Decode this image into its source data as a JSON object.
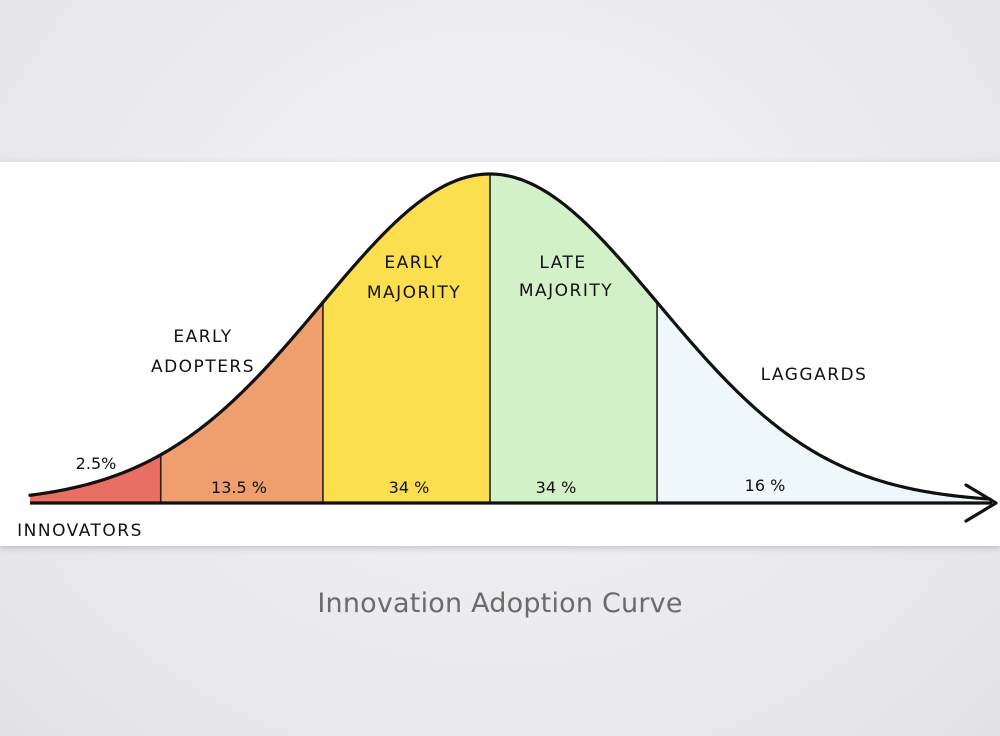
{
  "slide": {
    "caption": "Innovation Adoption Curve"
  },
  "chart_data": {
    "type": "area",
    "series": [
      {
        "name": "INNOVATORS",
        "value_label": "2.5%",
        "value": 2.5,
        "color": "#ea6f63"
      },
      {
        "name": "EARLY ADOPTERS",
        "value_label": "13.5 %",
        "value": 13.5,
        "color": "#ef9e6e"
      },
      {
        "name": "EARLY MAJORITY",
        "value_label": "34 %",
        "value": 34,
        "color": "#fbdf4e"
      },
      {
        "name": "LATE MAJORITY",
        "value_label": "34 %",
        "value": 34,
        "color": "#d3f1c9"
      },
      {
        "name": "LAGGARDS",
        "value_label": "16 %",
        "value": 16,
        "color": "#eef7fa"
      }
    ],
    "labels": {
      "innovators": "INNOVATORS",
      "early_adopters_line1": "EARLY",
      "early_adopters_line2": "ADOPTERS",
      "early_majority_line1": "EARLY",
      "early_majority_line2": "MAJORITY",
      "late_majority_line1": "LATE",
      "late_majority_line2": "MAJORITY",
      "laggards": "LAGGARDS"
    },
    "xlabel": "",
    "ylabel": "",
    "grid": false
  }
}
